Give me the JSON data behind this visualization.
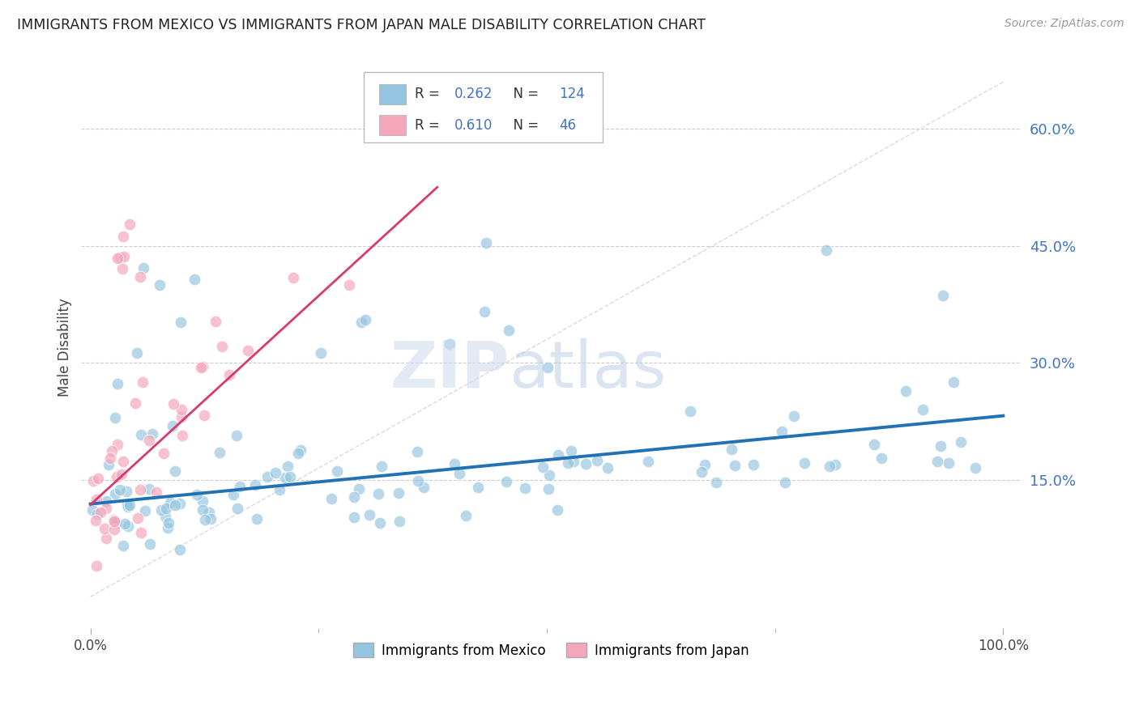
{
  "title": "IMMIGRANTS FROM MEXICO VS IMMIGRANTS FROM JAPAN MALE DISABILITY CORRELATION CHART",
  "source": "Source: ZipAtlas.com",
  "ylabel": "Male Disability",
  "xlim": [
    -0.01,
    1.02
  ],
  "ylim": [
    -0.04,
    0.68
  ],
  "yticks": [
    0.15,
    0.3,
    0.45,
    0.6
  ],
  "ytick_labels": [
    "15.0%",
    "30.0%",
    "45.0%",
    "60.0%"
  ],
  "mexico_color": "#93c4e0",
  "japan_color": "#f4a7bb",
  "mexico_line_color": "#2171b5",
  "japan_line_color": "#d63a6e",
  "mexico_R": 0.262,
  "mexico_N": 124,
  "japan_R": 0.61,
  "japan_N": 46,
  "background_color": "#ffffff",
  "grid_color": "#cccccc",
  "title_color": "#222222",
  "axis_label_color": "#4472c4",
  "ref_line_color": "#cccccc",
  "watermark_color": "#d0dff0"
}
